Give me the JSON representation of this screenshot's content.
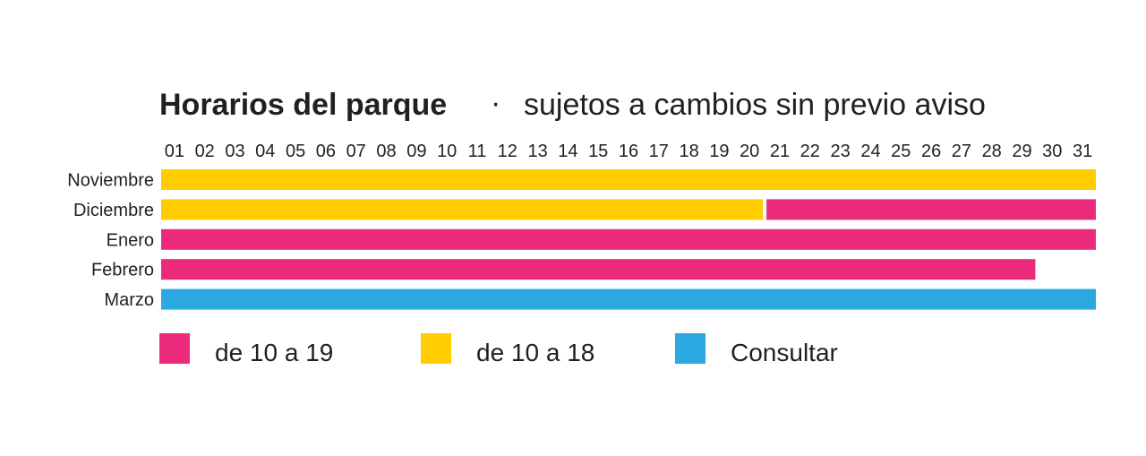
{
  "chart_data": {
    "type": "bar",
    "title": "Horarios del parque",
    "title_separator": "·",
    "subtitle": "sujetos a cambios sin previo aviso",
    "x": [
      "01",
      "02",
      "03",
      "04",
      "05",
      "06",
      "07",
      "08",
      "09",
      "10",
      "11",
      "12",
      "13",
      "14",
      "15",
      "16",
      "17",
      "18",
      "19",
      "20",
      "21",
      "22",
      "23",
      "24",
      "25",
      "26",
      "27",
      "28",
      "29",
      "30",
      "31"
    ],
    "categories": [
      "Noviembre",
      "Diciembre",
      "Enero",
      "Febrero",
      "Marzo"
    ],
    "series": [
      {
        "name": "de 10 a 19",
        "color": "#ec2a7b",
        "ranges": [
          {
            "category": "Diciembre",
            "start": 21,
            "end": 31
          },
          {
            "category": "Enero",
            "start": 1,
            "end": 31
          },
          {
            "category": "Febrero",
            "start": 1,
            "end": 29
          }
        ]
      },
      {
        "name": "de 10 a 18",
        "color": "#ffcc00",
        "ranges": [
          {
            "category": "Noviembre",
            "start": 1,
            "end": 31
          },
          {
            "category": "Diciembre",
            "start": 1,
            "end": 20
          }
        ]
      },
      {
        "name": "Consultar",
        "color": "#2aa8e0",
        "ranges": [
          {
            "category": "Marzo",
            "start": 1,
            "end": 31
          }
        ]
      }
    ],
    "xlim": [
      1,
      31
    ],
    "grid": false,
    "legend": "bottom"
  }
}
